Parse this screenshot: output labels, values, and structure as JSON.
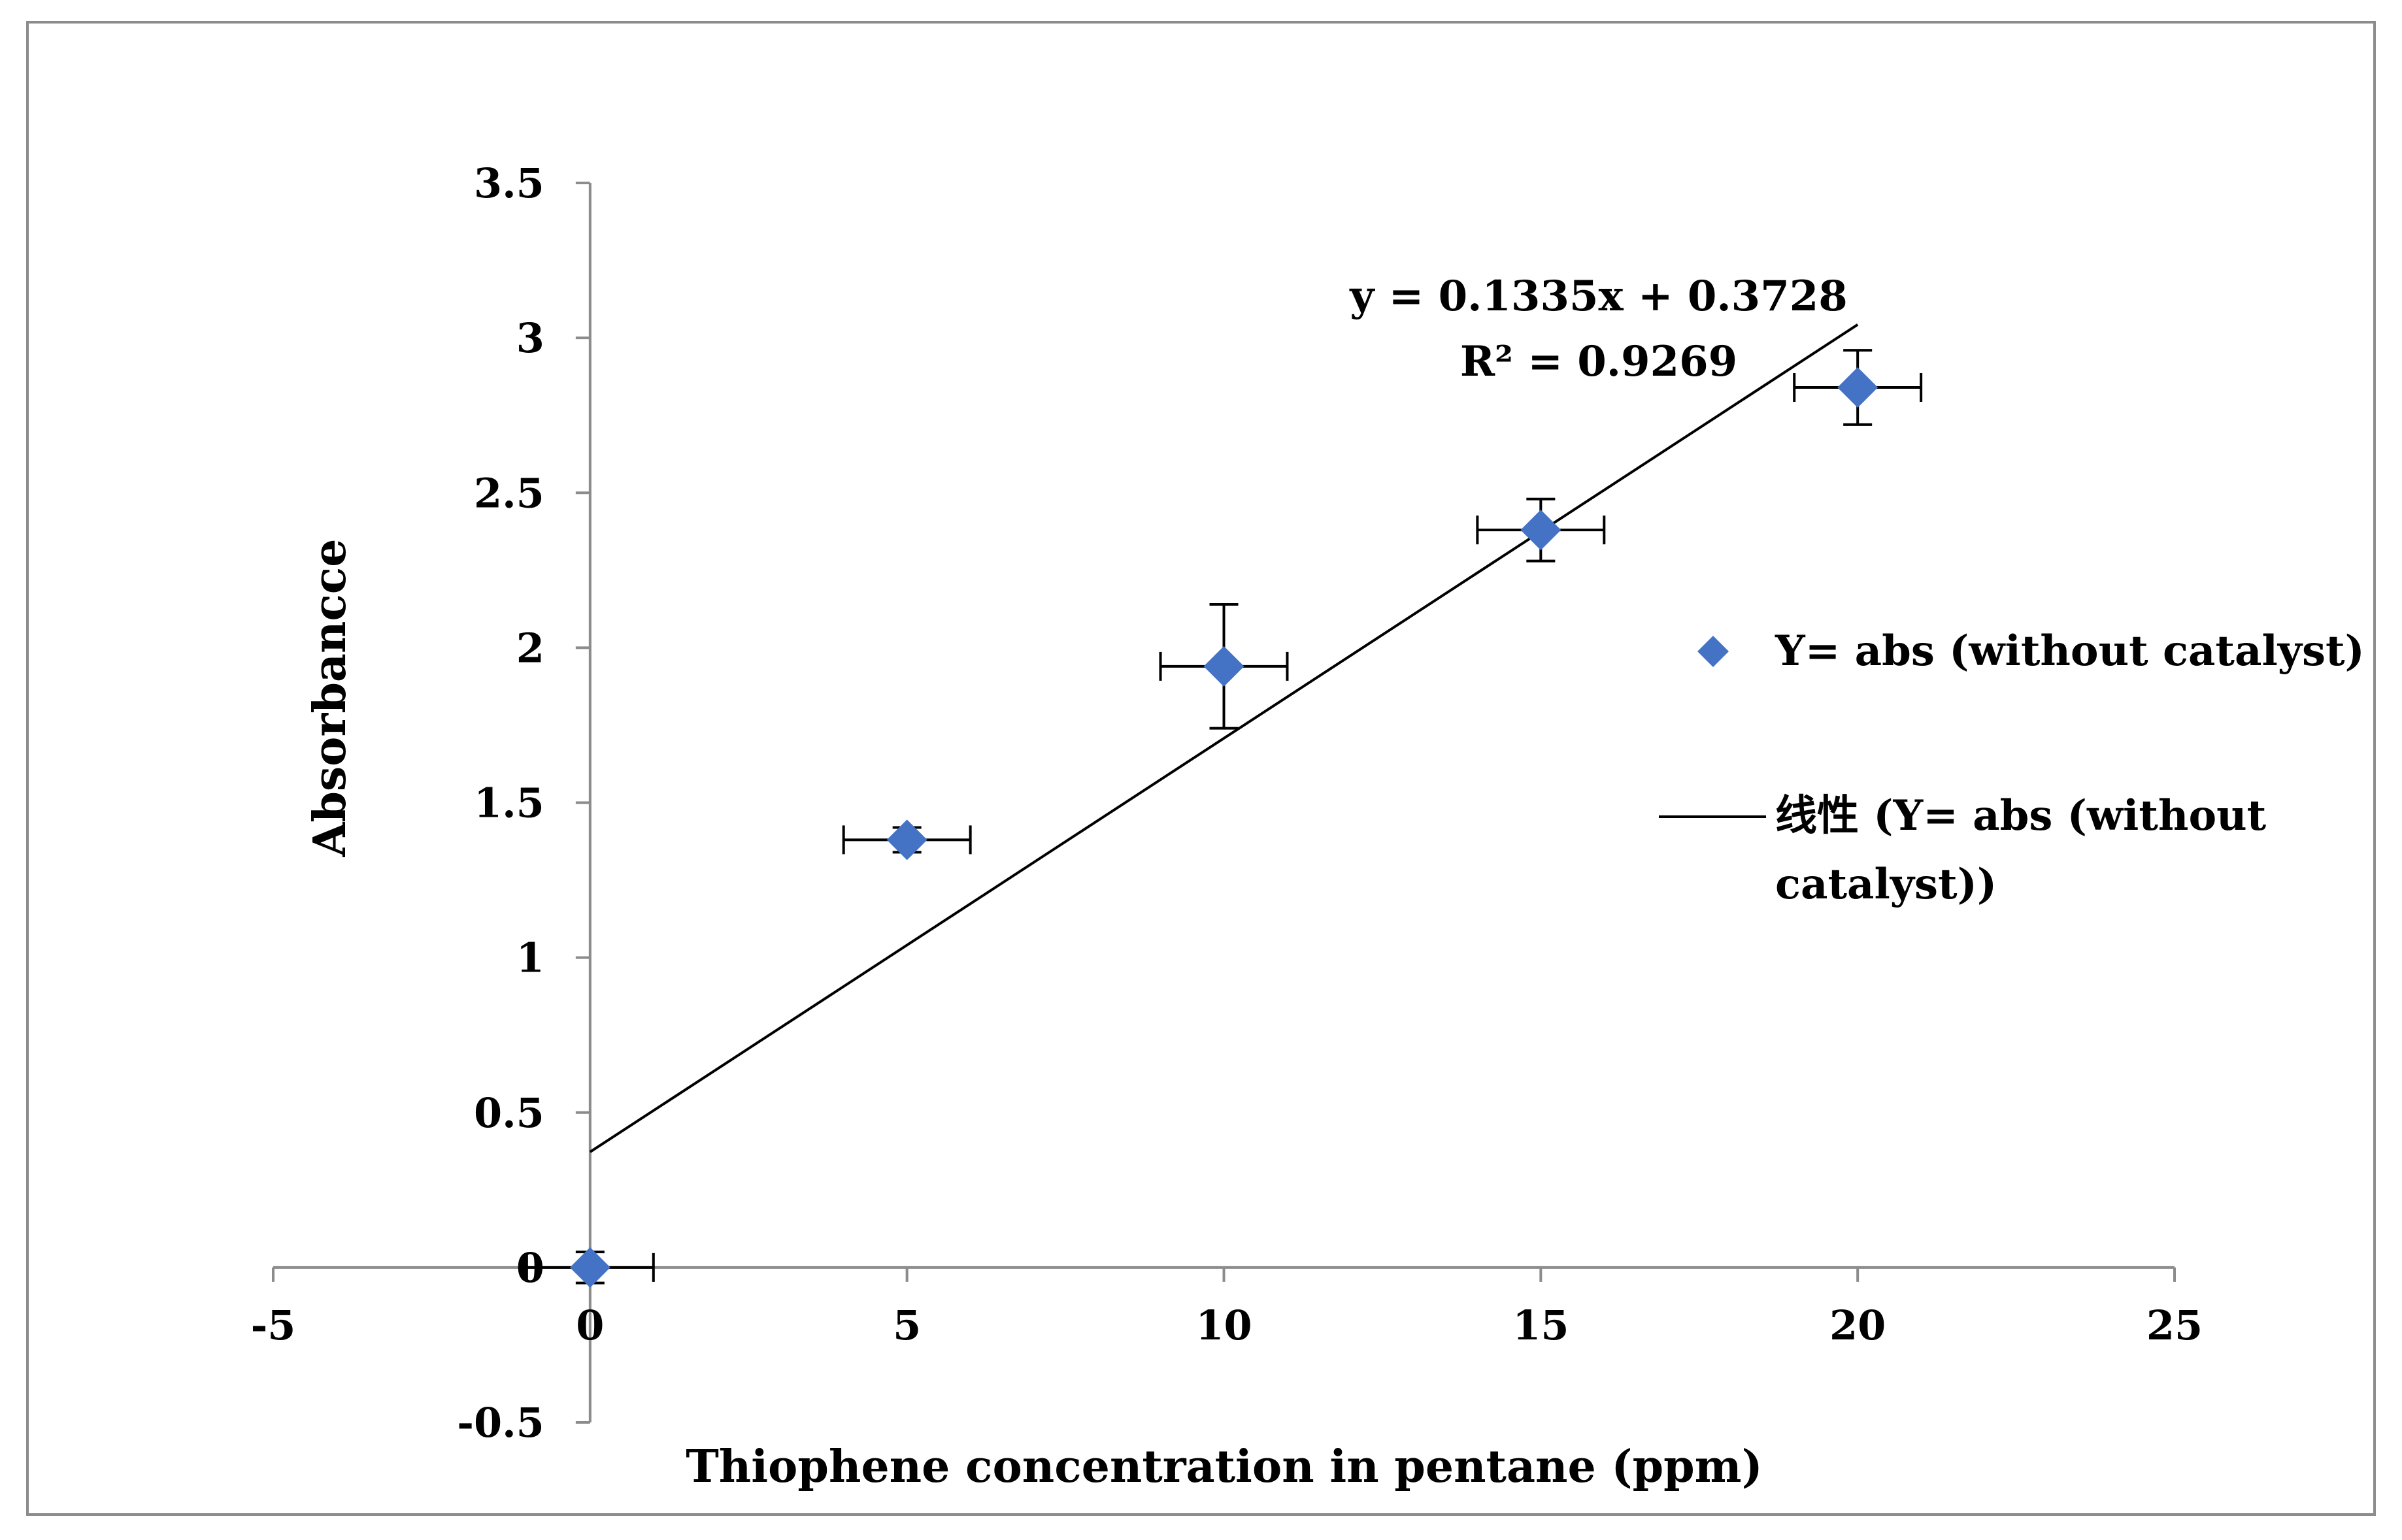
{
  "chart_data": {
    "type": "scatter",
    "title": "",
    "xlabel": "Thiophene concentration in pentane (ppm)",
    "ylabel": "Absorbancce",
    "xlim": [
      -5,
      25
    ],
    "ylim": [
      -0.5,
      3.5
    ],
    "x_ticks": [
      -5,
      0,
      5,
      10,
      15,
      20,
      25
    ],
    "y_ticks": [
      -0.5,
      0,
      0.5,
      1,
      1.5,
      2,
      2.5,
      3,
      3.5
    ],
    "x_tick_labels": [
      "-5",
      "0",
      "5",
      "10",
      "15",
      "20",
      "25"
    ],
    "y_tick_labels": [
      "-0.5",
      "0",
      "0.5",
      "1",
      "1.5",
      "2",
      "2.5",
      "3",
      "3.5"
    ],
    "grid": false,
    "legend_position": "right",
    "series": [
      {
        "name": "Y= abs (without catalyst)",
        "marker": "diamond",
        "color": "#4472C4",
        "x": [
          0,
          5,
          10,
          15,
          20
        ],
        "y": [
          0,
          1.38,
          1.94,
          2.38,
          2.84
        ],
        "x_error": [
          1,
          1,
          1,
          1,
          1
        ],
        "y_error": [
          0.05,
          0.04,
          0.2,
          0.1,
          0.12
        ]
      }
    ],
    "trendline": {
      "name": "线性 (Y= abs (without catalyst))",
      "type": "linear",
      "slope": 0.1335,
      "intercept": 0.3728,
      "x_range": [
        0,
        20
      ],
      "color": "#000000",
      "equation_label": "y = 0.1335x + 0.3728",
      "r2_label": "R² = 0.9269"
    },
    "legend": {
      "marker_label": "Y= abs (without catalyst)",
      "line_label_line1": "线性 (Y= abs (without",
      "line_label_line2": "catalyst))"
    }
  }
}
